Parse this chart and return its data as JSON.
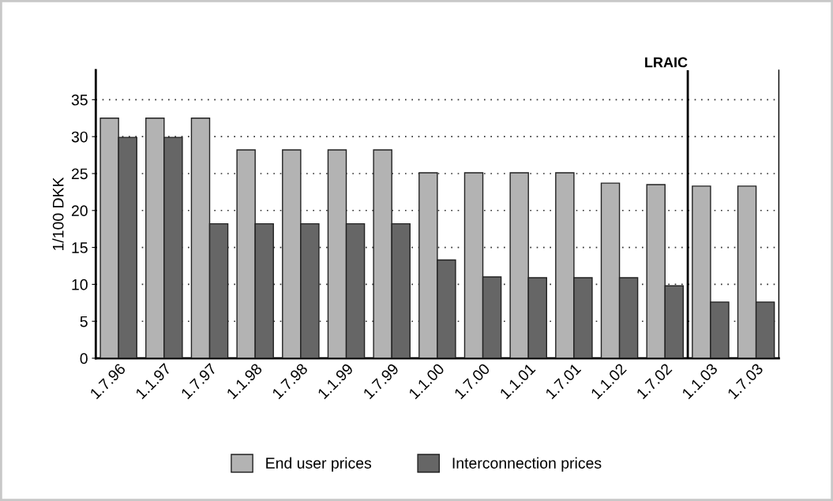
{
  "chart_data": {
    "type": "bar",
    "ylabel": "1/100 DKK",
    "categories": [
      "1.7.96",
      "1.1.97",
      "1.7.97",
      "1.1.98",
      "1.7.98",
      "1.1.99",
      "1.7.99",
      "1.1.00",
      "1.7.00",
      "1.1.01",
      "1.7.01",
      "1.1.02",
      "1.7.02",
      "1.1.03",
      "1.7.03"
    ],
    "series": [
      {
        "name": "End user prices",
        "color": "#b3b3b3",
        "values": [
          32.5,
          32.5,
          32.5,
          28.2,
          28.2,
          28.2,
          28.2,
          25.1,
          25.1,
          25.1,
          25.1,
          23.7,
          23.5,
          23.3,
          23.3
        ]
      },
      {
        "name": "Interconnection prices",
        "color": "#666666",
        "values": [
          29.9,
          29.9,
          18.2,
          18.2,
          18.2,
          18.2,
          18.2,
          13.3,
          11.0,
          10.9,
          10.9,
          10.9,
          9.8,
          7.6,
          7.6
        ]
      }
    ],
    "ylim": [
      0,
      39
    ],
    "yticks": [
      0,
      5,
      10,
      15,
      20,
      25,
      30,
      35
    ],
    "ref_lines": [
      {
        "axis": "x",
        "value": "1.1.03",
        "label": "LRAIC",
        "color": "#000000"
      }
    ],
    "grid": "y",
    "legend": "bottom"
  }
}
